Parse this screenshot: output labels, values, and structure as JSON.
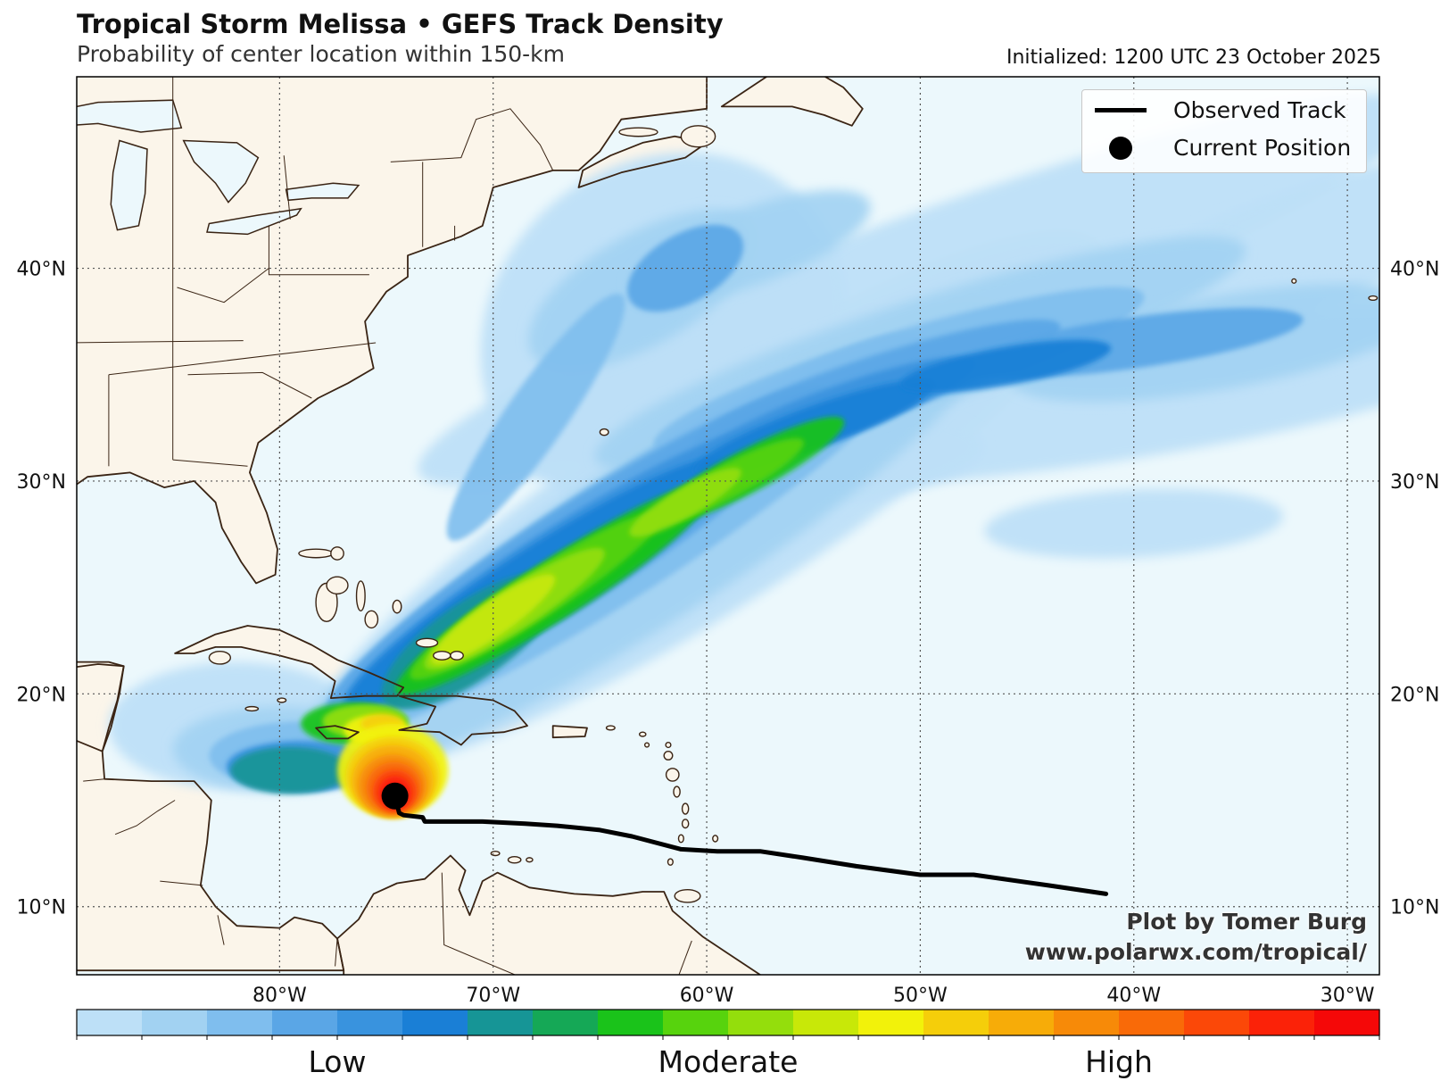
{
  "header": {
    "title": "Tropical Storm Melissa • GEFS Track Density",
    "subtitle": "Probability of center location within 150-km",
    "initialized": "Initialized: 1200 UTC 23 October 2025"
  },
  "map": {
    "lon_range": [
      -89.5,
      -28.5
    ],
    "lat_range": [
      6.8,
      49.0
    ],
    "lon_ticks": [
      {
        "lon": -80,
        "label": "80°W"
      },
      {
        "lon": -70,
        "label": "70°W"
      },
      {
        "lon": -60,
        "label": "60°W"
      },
      {
        "lon": -50,
        "label": "50°W"
      },
      {
        "lon": -40,
        "label": "40°W"
      },
      {
        "lon": -30,
        "label": "30°W"
      }
    ],
    "lat_ticks": [
      {
        "lat": 10,
        "label": "10°N"
      },
      {
        "lat": 20,
        "label": "20°N"
      },
      {
        "lat": 30,
        "label": "30°N"
      },
      {
        "lat": 40,
        "label": "40°N"
      }
    ],
    "colors": {
      "ocean": "#ecf8fc",
      "land": "#fbf5ea",
      "coast": "#3a2414",
      "grid": "#555555"
    }
  },
  "observed_track": [
    [
      -41.3,
      10.6
    ],
    [
      -44.0,
      11.0
    ],
    [
      -47.5,
      11.5
    ],
    [
      -50.0,
      11.5
    ],
    [
      -53.0,
      11.9
    ],
    [
      -55.5,
      12.3
    ],
    [
      -57.5,
      12.6
    ],
    [
      -59.5,
      12.6
    ],
    [
      -61.2,
      12.7
    ],
    [
      -63.5,
      13.3
    ],
    [
      -65.0,
      13.6
    ],
    [
      -67.0,
      13.8
    ],
    [
      -68.5,
      13.9
    ],
    [
      -70.5,
      14.0
    ],
    [
      -73.2,
      14.0
    ],
    [
      -73.3,
      14.2
    ],
    [
      -74.2,
      14.3
    ],
    [
      -74.4,
      14.4
    ],
    [
      -74.6,
      15.2
    ]
  ],
  "current_position": [
    -74.6,
    15.2
  ],
  "legend": {
    "observed_label": "Observed Track",
    "current_label": "Current Position"
  },
  "credit": {
    "line1": "Plot by Tomer Burg",
    "line2": "www.polarwx.com/tropical/"
  },
  "colorbar": {
    "colors": [
      "#bde0f7",
      "#a2d2f2",
      "#7fbeee",
      "#5aa6e6",
      "#3993de",
      "#1a7fd6",
      "#169596",
      "#15a856",
      "#1ac31a",
      "#57d30d",
      "#94de0c",
      "#c8e808",
      "#f2f20a",
      "#f5ce0a",
      "#f7ac08",
      "#f78a08",
      "#f96a08",
      "#fb4808",
      "#fb2208",
      "#f50808"
    ],
    "labels": [
      {
        "text": "Low",
        "frac": 0.2
      },
      {
        "text": "Moderate",
        "frac": 0.5
      },
      {
        "text": "High",
        "frac": 0.8
      }
    ]
  }
}
